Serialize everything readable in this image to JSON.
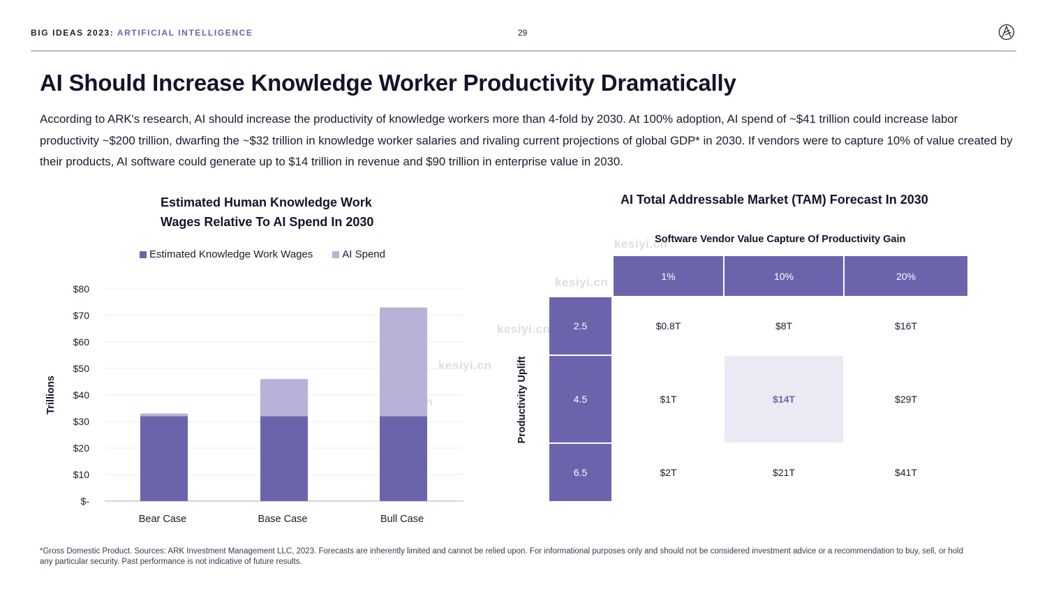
{
  "header": {
    "brand": "BIG IDEAS 2023:",
    "topic": "ARTIFICIAL INTELLIGENCE",
    "page_number": "29",
    "logo_icon": "ark-logo-icon"
  },
  "title": "AI Should Increase Knowledge Worker Productivity Dramatically",
  "intro": "According to ARK's research, AI should increase the productivity of knowledge workers more than 4-fold by 2030. At 100% adoption, AI spend of ~$41 trillion could increase labor productivity ~$200 trillion, dwarfing the ~$32 trillion in knowledge worker salaries and rivaling current projections of global GDP* in 2030. If vendors were to capture 10% of value created by their products, AI software could generate up to $14 trillion in revenue and $90 trillion in enterprise value in 2030.",
  "colors": {
    "wages": "#6c63ad",
    "ai_spend": "#b8b1d8",
    "highlight": "#ece9f5",
    "grid": "#ececf2"
  },
  "chart_data": [
    {
      "type": "bar",
      "stacked": true,
      "title_lines": [
        "Estimated Human Knowledge Work",
        "Wages Relative To AI Spend In 2030"
      ],
      "categories": [
        "Bear Case",
        "Base Case",
        "Bull Case"
      ],
      "series": [
        {
          "name": "Estimated Knowledge Work Wages",
          "values": [
            32,
            32,
            32
          ]
        },
        {
          "name": "AI Spend",
          "values": [
            1,
            14,
            41
          ]
        }
      ],
      "ylabel": "Trillions",
      "ylim": [
        0,
        80
      ],
      "yticks": [
        0,
        10,
        20,
        30,
        40,
        50,
        60,
        70,
        80
      ],
      "ytick_labels": [
        "$-",
        "$10",
        "$20",
        "$30",
        "$40",
        "$50",
        "$60",
        "$70",
        "$80"
      ],
      "grid": true,
      "legend_position": "top"
    },
    {
      "type": "table",
      "title": "AI Total Addressable Market (TAM) Forecast In 2030",
      "column_axis_label": "Software Vendor Value Capture Of Productivity Gain",
      "row_axis_label": "Productivity Uplift",
      "columns": [
        "1%",
        "10%",
        "20%"
      ],
      "rows": [
        {
          "label": "2.5",
          "values": [
            "$0.8T",
            "$8T",
            "$16T"
          ]
        },
        {
          "label": "4.5",
          "values": [
            "$1T",
            "$14T",
            "$29T"
          ]
        },
        {
          "label": "6.5",
          "values": [
            "$2T",
            "$21T",
            "$41T"
          ]
        }
      ],
      "highlighted_cell": "$14T"
    }
  ],
  "watermark": "kesiyi.cn",
  "footnote": "*Gross Domestic Product. Sources: ARK Investment Management LLC, 2023. Forecasts are inherently limited and cannot be relied upon. For informational purposes only and should not be considered investment advice or a recommendation to buy, sell, or hold any particular security. Past performance is not indicative of future results."
}
